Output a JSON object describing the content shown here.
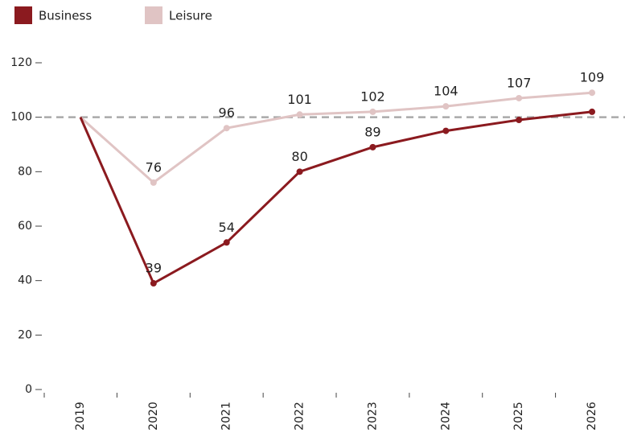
{
  "chart_data": {
    "type": "line",
    "categories": [
      "2019",
      "2020",
      "2021",
      "2022",
      "2023",
      "2024",
      "2025",
      "2026"
    ],
    "series": [
      {
        "name": "Business",
        "color": "#8b1a1f",
        "values": [
          100,
          39,
          54,
          80,
          89,
          95,
          99,
          102
        ],
        "value_labels": [
          null,
          "39",
          "54",
          "80",
          "89",
          null,
          null,
          null
        ]
      },
      {
        "name": "Leisure",
        "color": "#e0c4c4",
        "values": [
          100,
          76,
          96,
          101,
          102,
          104,
          107,
          109
        ],
        "value_labels": [
          null,
          "76",
          "96",
          "101",
          "102",
          "104",
          "107",
          "109"
        ]
      }
    ],
    "ylim": [
      0,
      120
    ],
    "yticks": [
      0,
      20,
      40,
      60,
      80,
      100,
      120
    ],
    "reference_line": 100,
    "reference_color": "#aaaaaa"
  }
}
